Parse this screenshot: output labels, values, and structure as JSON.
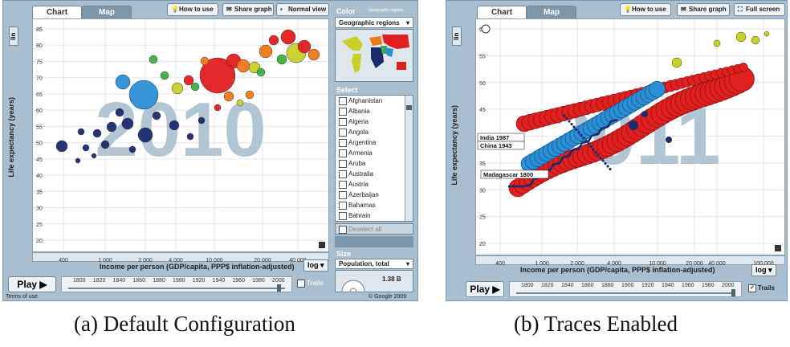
{
  "panel_a": {
    "tabs": [
      "Chart",
      "Map"
    ],
    "toolbar": {
      "how_to_use": "How to use",
      "share_graph": "Share graph",
      "normal_view": "Normal view"
    },
    "y_scale": "lin",
    "y_axis_label": "Life expectancy (years)",
    "x_axis_label": "Income per person (GDP/capita, PPP$ inflation-adjusted)",
    "x_scale": "log",
    "year_watermark": "2010",
    "y_ticks": [
      "85",
      "80",
      "75",
      "70",
      "65",
      "60",
      "55",
      "50",
      "45",
      "40",
      "35",
      "30",
      "25",
      "20"
    ],
    "x_ticks": [
      "400",
      "1 000",
      "2 000",
      "4 000",
      "10 000",
      "20 000",
      "40 000"
    ],
    "play_label": "Play",
    "timeline_years": [
      "1800",
      "1820",
      "1840",
      "1860",
      "1880",
      "1900",
      "1920",
      "1940",
      "1960",
      "1980",
      "2000"
    ],
    "trails_label": "Trails",
    "color": {
      "heading": "Color",
      "value": "Geographic regions",
      "sub": "Geographic regions"
    },
    "select": {
      "heading": "Select",
      "countries": [
        "Afghanistan",
        "Albania",
        "Algeria",
        "Angola",
        "Argentina",
        "Armenia",
        "Aruba",
        "Australia",
        "Austria",
        "Azerbaijan",
        "Bahamas",
        "Bahrain",
        "Bangladesh"
      ],
      "deselect": "Deselect all"
    },
    "size": {
      "heading": "Size",
      "value": "Population, total",
      "amount": "1.38 B"
    },
    "terms": "Terms of use",
    "copyright": "© Google 2009",
    "colors": {
      "south_asia": "#e01f1f",
      "east_asia": "#2a8fd4",
      "africa": "#1c2a6e",
      "europe": "#f07818",
      "americas": "#c8d028",
      "middle_east": "#3cb043"
    }
  },
  "panel_b": {
    "tabs": [
      "Chart",
      "Map"
    ],
    "toolbar": {
      "how_to_use": "How to use",
      "share_graph": "Share graph",
      "full_screen": "Full screen"
    },
    "y_scale": "lin",
    "y_axis_label": "Life expectancy (years)",
    "x_axis_label": "Income per person (GDP/capita, PPP$ inflation-adjusted)",
    "x_scale": "log",
    "year_watermark": "2011",
    "y_ticks": [
      "60",
      "55",
      "50",
      "45",
      "40",
      "35",
      "30",
      "25",
      "20"
    ],
    "x_ticks": [
      "400",
      "1 000",
      "2 000",
      "4 000",
      "10 000",
      "20 000",
      "40 000",
      "100 000"
    ],
    "play_label": "Play",
    "timeline_years": [
      "1800",
      "1820",
      "1840",
      "1860",
      "1880",
      "1900",
      "1920",
      "1940",
      "1960",
      "1980",
      "2000"
    ],
    "trails_label": "Trails",
    "annotations": [
      "India 1987",
      "China 1943",
      "Madagascar 1800"
    ]
  },
  "captions": {
    "a": "(a) Default Configuration",
    "b": "(b) Traces Enabled"
  }
}
